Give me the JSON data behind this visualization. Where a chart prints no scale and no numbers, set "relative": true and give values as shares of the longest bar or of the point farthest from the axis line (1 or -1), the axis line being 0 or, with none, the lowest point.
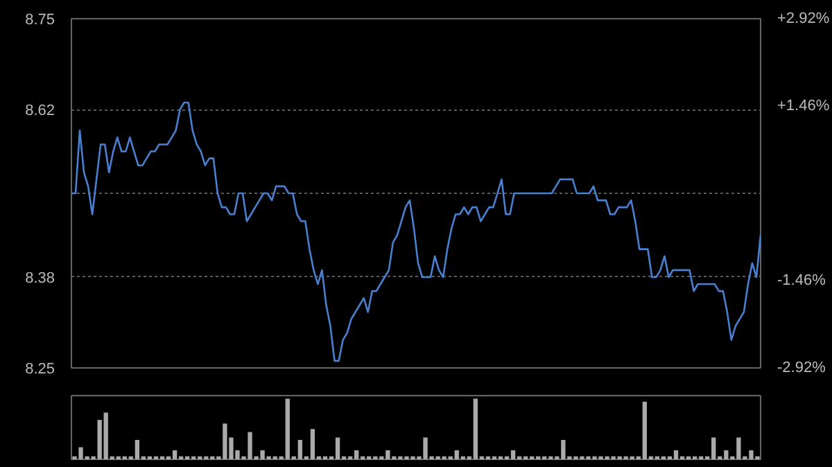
{
  "chart_data": [
    {
      "type": "line",
      "color": "#4a80d0",
      "marker": "none",
      "line_style": "solid",
      "grid": "y",
      "categories": [
        null,
        null,
        null,
        null,
        null,
        null,
        null,
        null,
        null,
        null,
        null,
        null,
        null,
        null,
        null,
        null,
        null,
        null,
        null,
        null,
        null,
        null,
        null,
        null,
        null,
        null,
        null,
        null,
        null,
        null,
        null,
        null,
        null,
        null,
        null,
        null,
        null,
        null,
        null,
        null,
        null,
        null,
        null,
        null,
        null,
        null,
        null,
        null,
        null,
        null,
        null,
        null,
        null,
        null,
        null,
        null,
        null,
        null,
        null,
        null,
        null,
        null,
        null,
        null,
        null,
        null,
        null,
        null,
        null,
        null,
        null,
        null,
        null,
        null,
        null,
        null,
        null,
        null,
        null,
        null,
        null,
        null,
        null,
        null,
        null,
        null,
        null,
        null,
        null,
        null,
        null,
        null,
        null,
        null,
        null,
        null,
        null,
        null,
        null,
        null,
        null,
        null,
        null,
        null,
        null,
        null,
        null,
        null,
        null,
        null,
        null,
        null,
        null,
        null,
        null,
        null,
        null,
        null,
        null,
        null,
        null,
        null,
        null,
        null,
        null,
        null,
        null,
        null,
        null,
        null,
        null,
        null,
        null,
        null,
        null,
        null,
        null,
        null,
        null,
        null,
        null,
        null,
        null,
        null,
        null,
        null,
        null,
        null,
        null,
        null,
        null,
        null,
        null,
        null,
        null,
        null,
        null,
        null,
        null,
        null,
        null,
        null,
        null,
        null,
        null,
        null
      ],
      "ylim": [
        8.25,
        8.75
      ],
      "yticks": [
        8.25,
        8.38,
        {
          "value": 8.5,
          "label": null
        },
        8.62,
        8.75
      ],
      "y2lim": [
        -2.92,
        2.92
      ],
      "y2ticks": [
        {
          "value": -2.92,
          "label": "-2.92%"
        },
        {
          "value": -1.46,
          "label": "-1.46%"
        },
        {
          "value": 1.46,
          "label": "+1.46%"
        },
        {
          "value": 2.92,
          "label": "+2.92%"
        }
      ],
      "values": [
        8.5,
        8.5,
        8.59,
        8.53,
        8.51,
        8.47,
        8.52,
        8.57,
        8.57,
        8.53,
        8.56,
        8.58,
        8.56,
        8.56,
        8.58,
        8.56,
        8.54,
        8.54,
        8.55,
        8.56,
        8.56,
        8.57,
        8.57,
        8.57,
        8.58,
        8.59,
        8.62,
        8.63,
        8.63,
        8.59,
        8.57,
        8.56,
        8.54,
        8.55,
        8.55,
        8.5,
        8.48,
        8.48,
        8.47,
        8.47,
        8.5,
        8.5,
        8.46,
        8.47,
        8.48,
        8.49,
        8.5,
        8.5,
        8.49,
        8.51,
        8.51,
        8.51,
        8.5,
        8.5,
        8.47,
        8.46,
        8.46,
        8.42,
        8.39,
        8.37,
        8.39,
        8.34,
        8.31,
        8.26,
        8.26,
        8.29,
        8.3,
        8.32,
        8.33,
        8.34,
        8.35,
        8.33,
        8.36,
        8.36,
        8.37,
        8.38,
        8.39,
        8.43,
        8.44,
        8.46,
        8.48,
        8.49,
        8.45,
        8.4,
        8.38,
        8.38,
        8.38,
        8.41,
        8.39,
        8.38,
        8.42,
        8.45,
        8.47,
        8.47,
        8.48,
        8.47,
        8.48,
        8.48,
        8.46,
        8.47,
        8.48,
        8.48,
        8.5,
        8.52,
        8.47,
        8.47,
        8.5,
        8.5,
        8.5,
        8.5,
        8.5,
        8.5,
        8.5,
        8.5,
        8.5,
        8.5,
        8.51,
        8.52,
        8.52,
        8.52,
        8.52,
        8.5,
        8.5,
        8.5,
        8.5,
        8.51,
        8.49,
        8.49,
        8.49,
        8.47,
        8.47,
        8.48,
        8.48,
        8.48,
        8.49,
        8.46,
        8.42,
        8.42,
        8.42,
        8.38,
        8.38,
        8.39,
        8.41,
        8.38,
        8.39,
        8.39,
        8.39,
        8.39,
        8.39,
        8.36,
        8.37,
        8.37,
        8.37,
        8.37,
        8.37,
        8.36,
        8.36,
        8.33,
        8.29,
        8.31,
        8.32,
        8.33,
        8.37,
        8.4,
        8.38,
        8.44
      ]
    },
    {
      "type": "bar",
      "relative": true,
      "color": "#aaaaaa",
      "categories": [
        null,
        null,
        null,
        null,
        null,
        null,
        null,
        null,
        null,
        null,
        null,
        null,
        null,
        null,
        null,
        null,
        null,
        null,
        null,
        null,
        null,
        null,
        null,
        null,
        null,
        null,
        null,
        null,
        null,
        null,
        null,
        null,
        null,
        null,
        null,
        null,
        null,
        null,
        null,
        null,
        null,
        null,
        null,
        null,
        null,
        null,
        null,
        null,
        null,
        null,
        null,
        null,
        null,
        null,
        null,
        null,
        null,
        null,
        null,
        null,
        null,
        null,
        null,
        null,
        null,
        null,
        null,
        null,
        null,
        null,
        null,
        null,
        null,
        null,
        null,
        null,
        null,
        null,
        null,
        null,
        null,
        null,
        null,
        null,
        null,
        null,
        null,
        null,
        null,
        null,
        null,
        null,
        null,
        null,
        null,
        null,
        null,
        null,
        null,
        null,
        null,
        null,
        null,
        null,
        null,
        null,
        null,
        null,
        null,
        null
      ],
      "values": [
        0.05,
        0.2,
        0.05,
        0.05,
        0.65,
        0.77,
        0.05,
        0.05,
        0.05,
        0.05,
        0.32,
        0.05,
        0.05,
        0.05,
        0.05,
        0.05,
        0.15,
        0.05,
        0.05,
        0.05,
        0.05,
        0.05,
        0.05,
        0.05,
        0.59,
        0.36,
        0.15,
        0.05,
        0.45,
        0.05,
        0.15,
        0.05,
        0.05,
        0.05,
        1,
        0.05,
        0.32,
        0.05,
        0.5,
        0.05,
        0.05,
        0.05,
        0.36,
        0.05,
        0.05,
        0.15,
        0.05,
        0.05,
        0.05,
        0.05,
        0.15,
        0.05,
        0.05,
        0.05,
        0.05,
        0.05,
        0.36,
        0.05,
        0.05,
        0.05,
        0.05,
        0.15,
        0.05,
        0.05,
        1,
        0.05,
        0.05,
        0.05,
        0.05,
        0.05,
        0.15,
        0.05,
        0.05,
        0.05,
        0.05,
        0.05,
        0.05,
        0.05,
        0.32,
        0.05,
        0.05,
        0.05,
        0.05,
        0.05,
        0.05,
        0.05,
        0.05,
        0.05,
        0.05,
        0.05,
        0.05,
        0.95,
        0.05,
        0.05,
        0.05,
        0.05,
        0.15,
        0.05,
        0.05,
        0.05,
        0.05,
        0.05,
        0.36,
        0.05,
        0.15,
        0.05,
        0.36,
        0.05,
        0.15,
        0.05
      ]
    }
  ]
}
